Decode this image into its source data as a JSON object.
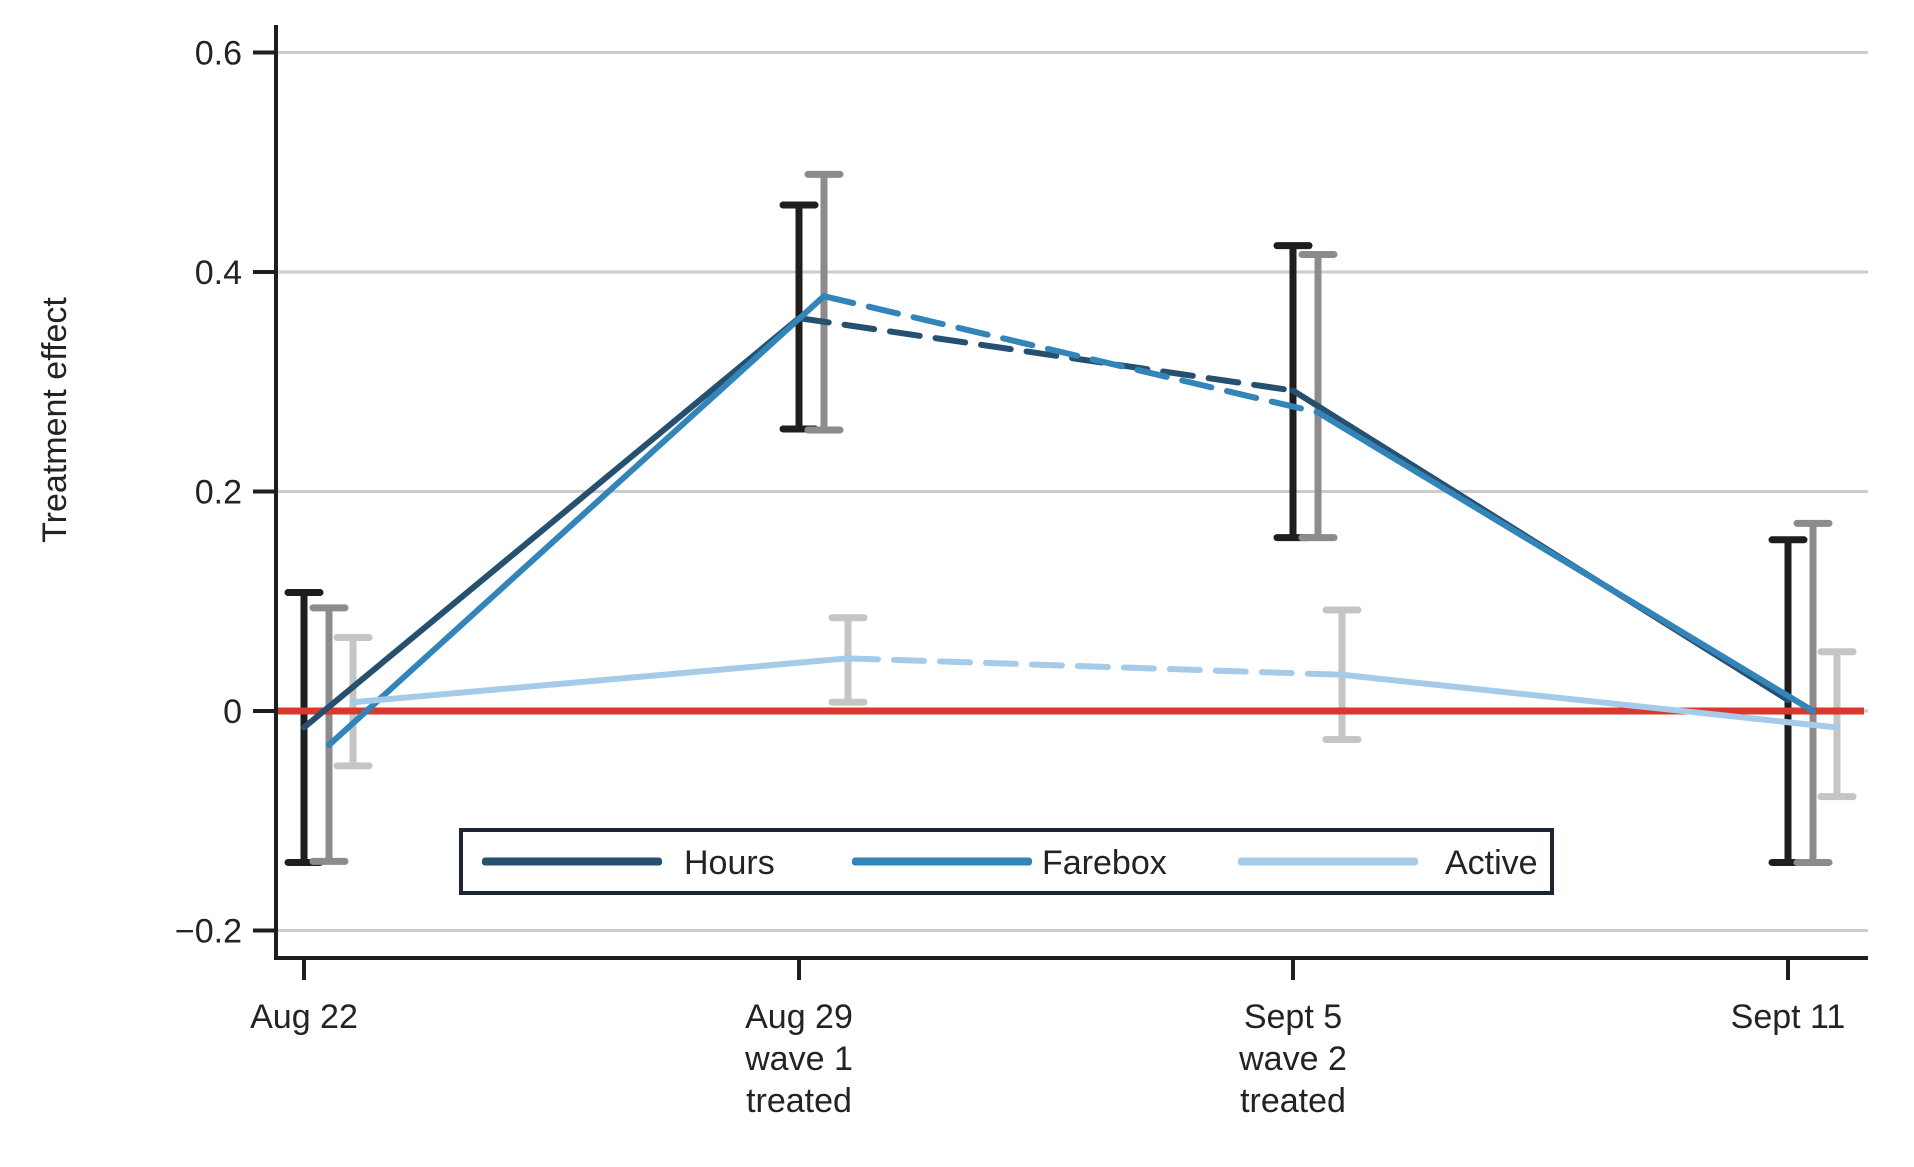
{
  "chart_data": {
    "type": "line",
    "title": "",
    "xlabel": "",
    "ylabel": "Treatment effect",
    "ylim": [
      -0.225,
      0.625
    ],
    "grid": "horizontal-gridlines",
    "legend_position": "bottom-center-inside",
    "yticks": [
      0.6,
      0.4,
      0.2,
      0,
      -0.2
    ],
    "ytick_labels": [
      "0.6",
      "0.4",
      "0.2",
      "0",
      "−0.2"
    ],
    "zero_line": {
      "value": 0,
      "color": "#d9382a"
    },
    "categories": [
      {
        "label_lines": [
          "Aug 22"
        ]
      },
      {
        "label_lines": [
          "Aug 29",
          "wave 1",
          "treated"
        ]
      },
      {
        "label_lines": [
          "Sept 5",
          "wave 2",
          "treated"
        ]
      },
      {
        "label_lines": [
          "Sept 11"
        ]
      }
    ],
    "segment_styles": [
      "solid",
      "dashed",
      "solid"
    ],
    "series": [
      {
        "name": "Hours",
        "color": "#255070",
        "ci_color": "#1e1e1e",
        "values": [
          -0.015,
          0.358,
          0.292,
          0.01
        ],
        "ci_low": [
          -0.138,
          0.257,
          0.158,
          -0.138
        ],
        "ci_high": [
          0.108,
          0.461,
          0.424,
          0.156
        ]
      },
      {
        "name": "Farebox",
        "color": "#3384b8",
        "ci_color": "#8c8c8c",
        "values": [
          -0.031,
          0.378,
          0.272,
          0.0
        ],
        "ci_low": [
          -0.137,
          0.256,
          0.158,
          -0.138
        ],
        "ci_high": [
          0.094,
          0.489,
          0.416,
          0.171
        ]
      },
      {
        "name": "Active",
        "color": "#a5cbe9",
        "ci_color": "#c5c5c5",
        "values": [
          0.008,
          0.048,
          0.033,
          -0.015
        ],
        "ci_low": [
          -0.05,
          0.008,
          -0.026,
          -0.078
        ],
        "ci_high": [
          0.067,
          0.085,
          0.092,
          0.054
        ]
      }
    ]
  },
  "colors": {
    "axis": "#1e1e1e",
    "gridline": "#cccccc",
    "text": "#232323",
    "legend_border": "#1c2530"
  }
}
